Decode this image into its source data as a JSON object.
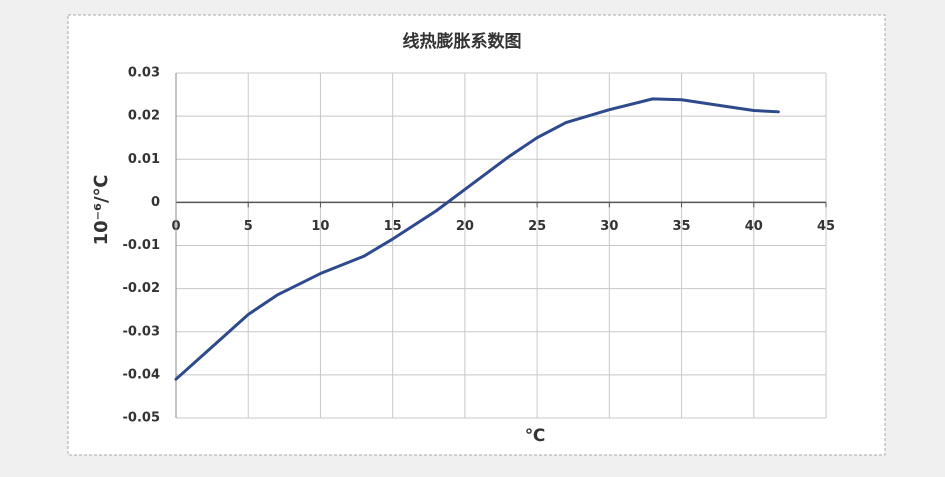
{
  "chart_data": {
    "type": "line",
    "title": "线热膨胀系数图",
    "y_label": "10⁻⁶/℃",
    "x_label": "℃",
    "series": [
      {
        "name": "线热膨胀系数",
        "color": "#2e4a8c",
        "x": [
          0,
          2.5,
          5,
          7,
          10,
          13,
          15,
          18,
          20,
          23,
          25,
          27,
          30,
          33,
          35,
          38,
          40,
          41.7
        ],
        "values": [
          -0.041,
          -0.0335,
          -0.026,
          -0.0215,
          -0.0165,
          -0.0125,
          -0.0085,
          -0.002,
          0.003,
          0.0105,
          0.015,
          0.0185,
          0.0215,
          0.024,
          0.0238,
          0.0223,
          0.0213,
          0.021
        ]
      }
    ],
    "xlim": [
      0,
      45
    ],
    "xticks": [
      0,
      5,
      10,
      15,
      20,
      25,
      30,
      35,
      40,
      45
    ],
    "ylim": [
      -0.05,
      0.03
    ],
    "yticks": [
      0.03,
      0.02,
      0.01,
      0,
      -0.01,
      -0.02,
      -0.03,
      -0.04,
      -0.05
    ],
    "grid": true
  }
}
